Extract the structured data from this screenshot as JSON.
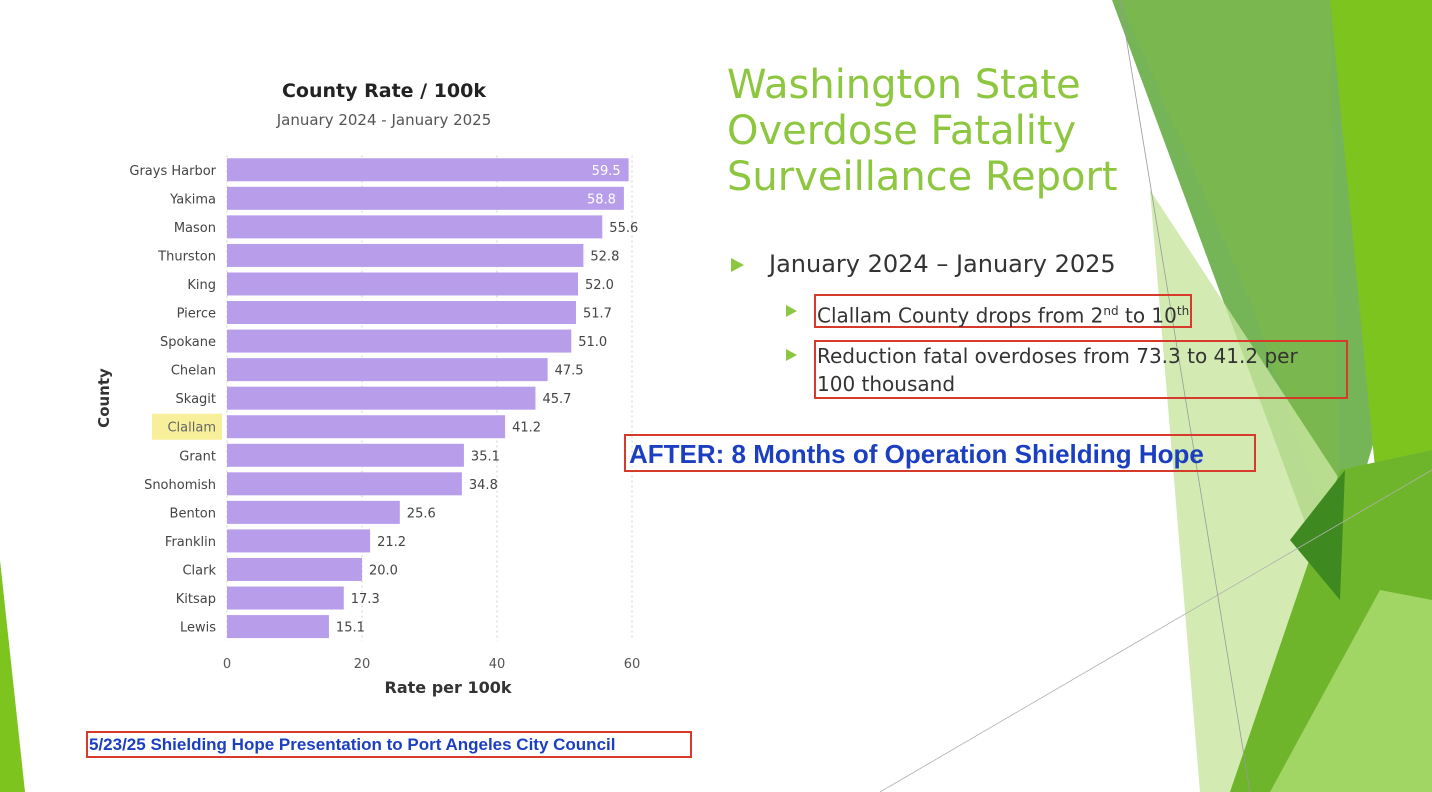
{
  "slide": {
    "title_lines": [
      "Washington State",
      "Overdose Fatality",
      "Surveillance Report"
    ],
    "bullet_main": "January 2024 – January 2025",
    "sub_bullet_1": {
      "pre": "Clallam County drops from 2",
      "sup1": "nd",
      "mid": " to 10",
      "sup2": "th"
    },
    "sub_bullet_2_line1": "Reduction fatal overdoses from 73.3 to 41.2 per",
    "sub_bullet_2_line2": "100 thousand",
    "after_text": "AFTER: 8 Months of Operation Shielding Hope",
    "footer_text": "5/23/25 Shielding Hope Presentation to Port Angeles City Council"
  },
  "colors": {
    "title_green": "#8dc63f",
    "bar_purple": "#b89deb",
    "highlight_yellow": "#f7ef9a",
    "annotation_red": "#d63a2a",
    "annotation_blue": "#1b3fc0"
  },
  "chart_data": {
    "type": "bar",
    "orientation": "horizontal",
    "title": "County Rate / 100k",
    "subtitle": "January 2024 - January 2025",
    "xlabel": "Rate per 100k",
    "ylabel": "County",
    "xlim": [
      0,
      60
    ],
    "xticks": [
      0,
      20,
      40,
      60
    ],
    "grid": true,
    "highlighted_category": "Clallam",
    "categories": [
      "Grays Harbor",
      "Yakima",
      "Mason",
      "Thurston",
      "King",
      "Pierce",
      "Spokane",
      "Chelan",
      "Skagit",
      "Clallam",
      "Grant",
      "Snohomish",
      "Benton",
      "Franklin",
      "Clark",
      "Kitsap",
      "Lewis"
    ],
    "values": [
      59.5,
      58.8,
      55.6,
      52.8,
      52.0,
      51.7,
      51.0,
      47.5,
      45.7,
      41.2,
      35.1,
      34.8,
      25.6,
      21.2,
      20.0,
      17.3,
      15.1
    ],
    "value_labels": [
      "59.5",
      "58.8",
      "55.6",
      "52.8",
      "52.0",
      "51.7",
      "51.0",
      "47.5",
      "45.7",
      "41.2",
      "35.1",
      "34.8",
      "25.6",
      "21.2",
      "20.0",
      "17.3",
      "15.1"
    ]
  }
}
